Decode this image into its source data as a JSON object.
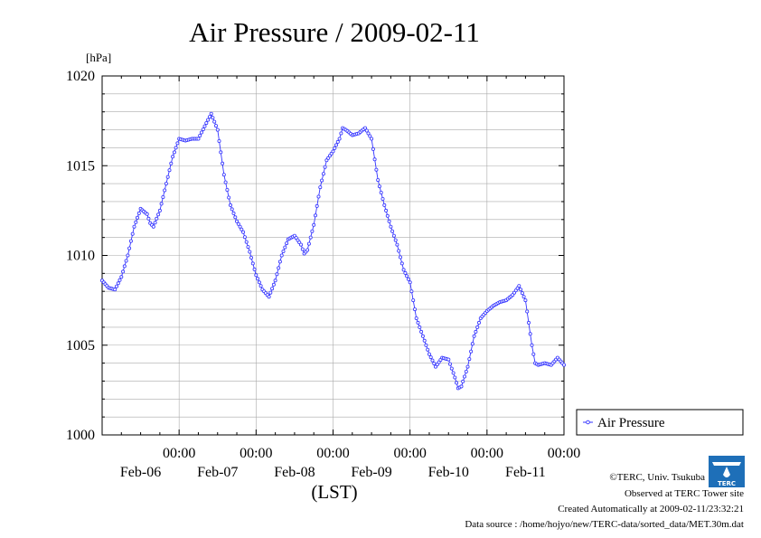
{
  "chart_data": {
    "type": "line",
    "title": "Air Pressure / 2009-02-11",
    "ylabel": "[hPa]",
    "xlabel": "(LST)",
    "ylim": [
      1000,
      1020
    ],
    "yticks": [
      1000,
      1005,
      1010,
      1015,
      1020
    ],
    "grid": true,
    "legend_position": "right",
    "x_unit": "days (30-min samples)",
    "x_ticks": [
      {
        "time": "00:00",
        "date": "Feb-06",
        "day": 1
      },
      {
        "time": "00:00",
        "date": "Feb-07",
        "day": 2
      },
      {
        "time": "00:00",
        "date": "Feb-08",
        "day": 3
      },
      {
        "time": "00:00",
        "date": "Feb-09",
        "day": 4
      },
      {
        "time": "00:00",
        "date": "Feb-10",
        "day": 5
      },
      {
        "time": "00:00",
        "date": "Feb-11",
        "day": 6
      }
    ],
    "xlim": [
      0,
      6
    ],
    "series": [
      {
        "name": "Air Pressure",
        "color": "#3333ff",
        "points": [
          [
            0.0,
            1008.6
          ],
          [
            0.083,
            1008.2
          ],
          [
            0.167,
            1008.1
          ],
          [
            0.25,
            1008.8
          ],
          [
            0.333,
            1010.0
          ],
          [
            0.417,
            1011.6
          ],
          [
            0.5,
            1012.6
          ],
          [
            0.583,
            1012.3
          ],
          [
            0.625,
            1011.8
          ],
          [
            0.667,
            1011.6
          ],
          [
            0.75,
            1012.5
          ],
          [
            0.833,
            1014.0
          ],
          [
            0.917,
            1015.5
          ],
          [
            1.0,
            1016.5
          ],
          [
            1.083,
            1016.4
          ],
          [
            1.167,
            1016.5
          ],
          [
            1.25,
            1016.5
          ],
          [
            1.333,
            1017.2
          ],
          [
            1.417,
            1017.9
          ],
          [
            1.5,
            1017.0
          ],
          [
            1.583,
            1014.5
          ],
          [
            1.667,
            1012.8
          ],
          [
            1.75,
            1011.9
          ],
          [
            1.833,
            1011.3
          ],
          [
            1.917,
            1010.2
          ],
          [
            2.0,
            1008.9
          ],
          [
            2.083,
            1008.1
          ],
          [
            2.167,
            1007.7
          ],
          [
            2.25,
            1008.6
          ],
          [
            2.333,
            1010.0
          ],
          [
            2.417,
            1010.9
          ],
          [
            2.5,
            1011.1
          ],
          [
            2.583,
            1010.6
          ],
          [
            2.625,
            1010.1
          ],
          [
            2.667,
            1010.3
          ],
          [
            2.75,
            1011.7
          ],
          [
            2.833,
            1013.8
          ],
          [
            2.917,
            1015.3
          ],
          [
            3.0,
            1015.8
          ],
          [
            3.083,
            1016.5
          ],
          [
            3.125,
            1017.1
          ],
          [
            3.167,
            1017.0
          ],
          [
            3.25,
            1016.7
          ],
          [
            3.333,
            1016.8
          ],
          [
            3.417,
            1017.1
          ],
          [
            3.5,
            1016.5
          ],
          [
            3.583,
            1014.2
          ],
          [
            3.667,
            1012.8
          ],
          [
            3.75,
            1011.6
          ],
          [
            3.833,
            1010.6
          ],
          [
            3.917,
            1009.2
          ],
          [
            4.0,
            1008.5
          ],
          [
            4.083,
            1006.5
          ],
          [
            4.167,
            1005.5
          ],
          [
            4.25,
            1004.5
          ],
          [
            4.333,
            1003.8
          ],
          [
            4.417,
            1004.3
          ],
          [
            4.5,
            1004.2
          ],
          [
            4.583,
            1003.2
          ],
          [
            4.625,
            1002.6
          ],
          [
            4.667,
            1002.7
          ],
          [
            4.75,
            1003.8
          ],
          [
            4.833,
            1005.5
          ],
          [
            4.917,
            1006.5
          ],
          [
            5.0,
            1006.9
          ],
          [
            5.083,
            1007.2
          ],
          [
            5.167,
            1007.4
          ],
          [
            5.25,
            1007.5
          ],
          [
            5.333,
            1007.8
          ],
          [
            5.417,
            1008.3
          ],
          [
            5.5,
            1007.5
          ],
          [
            5.583,
            1005.0
          ],
          [
            5.625,
            1004.0
          ],
          [
            5.667,
            1003.9
          ],
          [
            5.75,
            1004.0
          ],
          [
            5.833,
            1003.9
          ],
          [
            5.917,
            1004.3
          ],
          [
            6.0,
            1003.9
          ]
        ]
      }
    ]
  },
  "footer": {
    "copyright": "©TERC, Univ. Tsukuba",
    "observed": "Observed at TERC Tower site",
    "created": "Created Automatically at 2009-02-11/23:32:21",
    "source": "Data source : /home/hojyo/new/TERC-data/sorted_data/MET.30m.dat",
    "logo_text": "TERC"
  }
}
